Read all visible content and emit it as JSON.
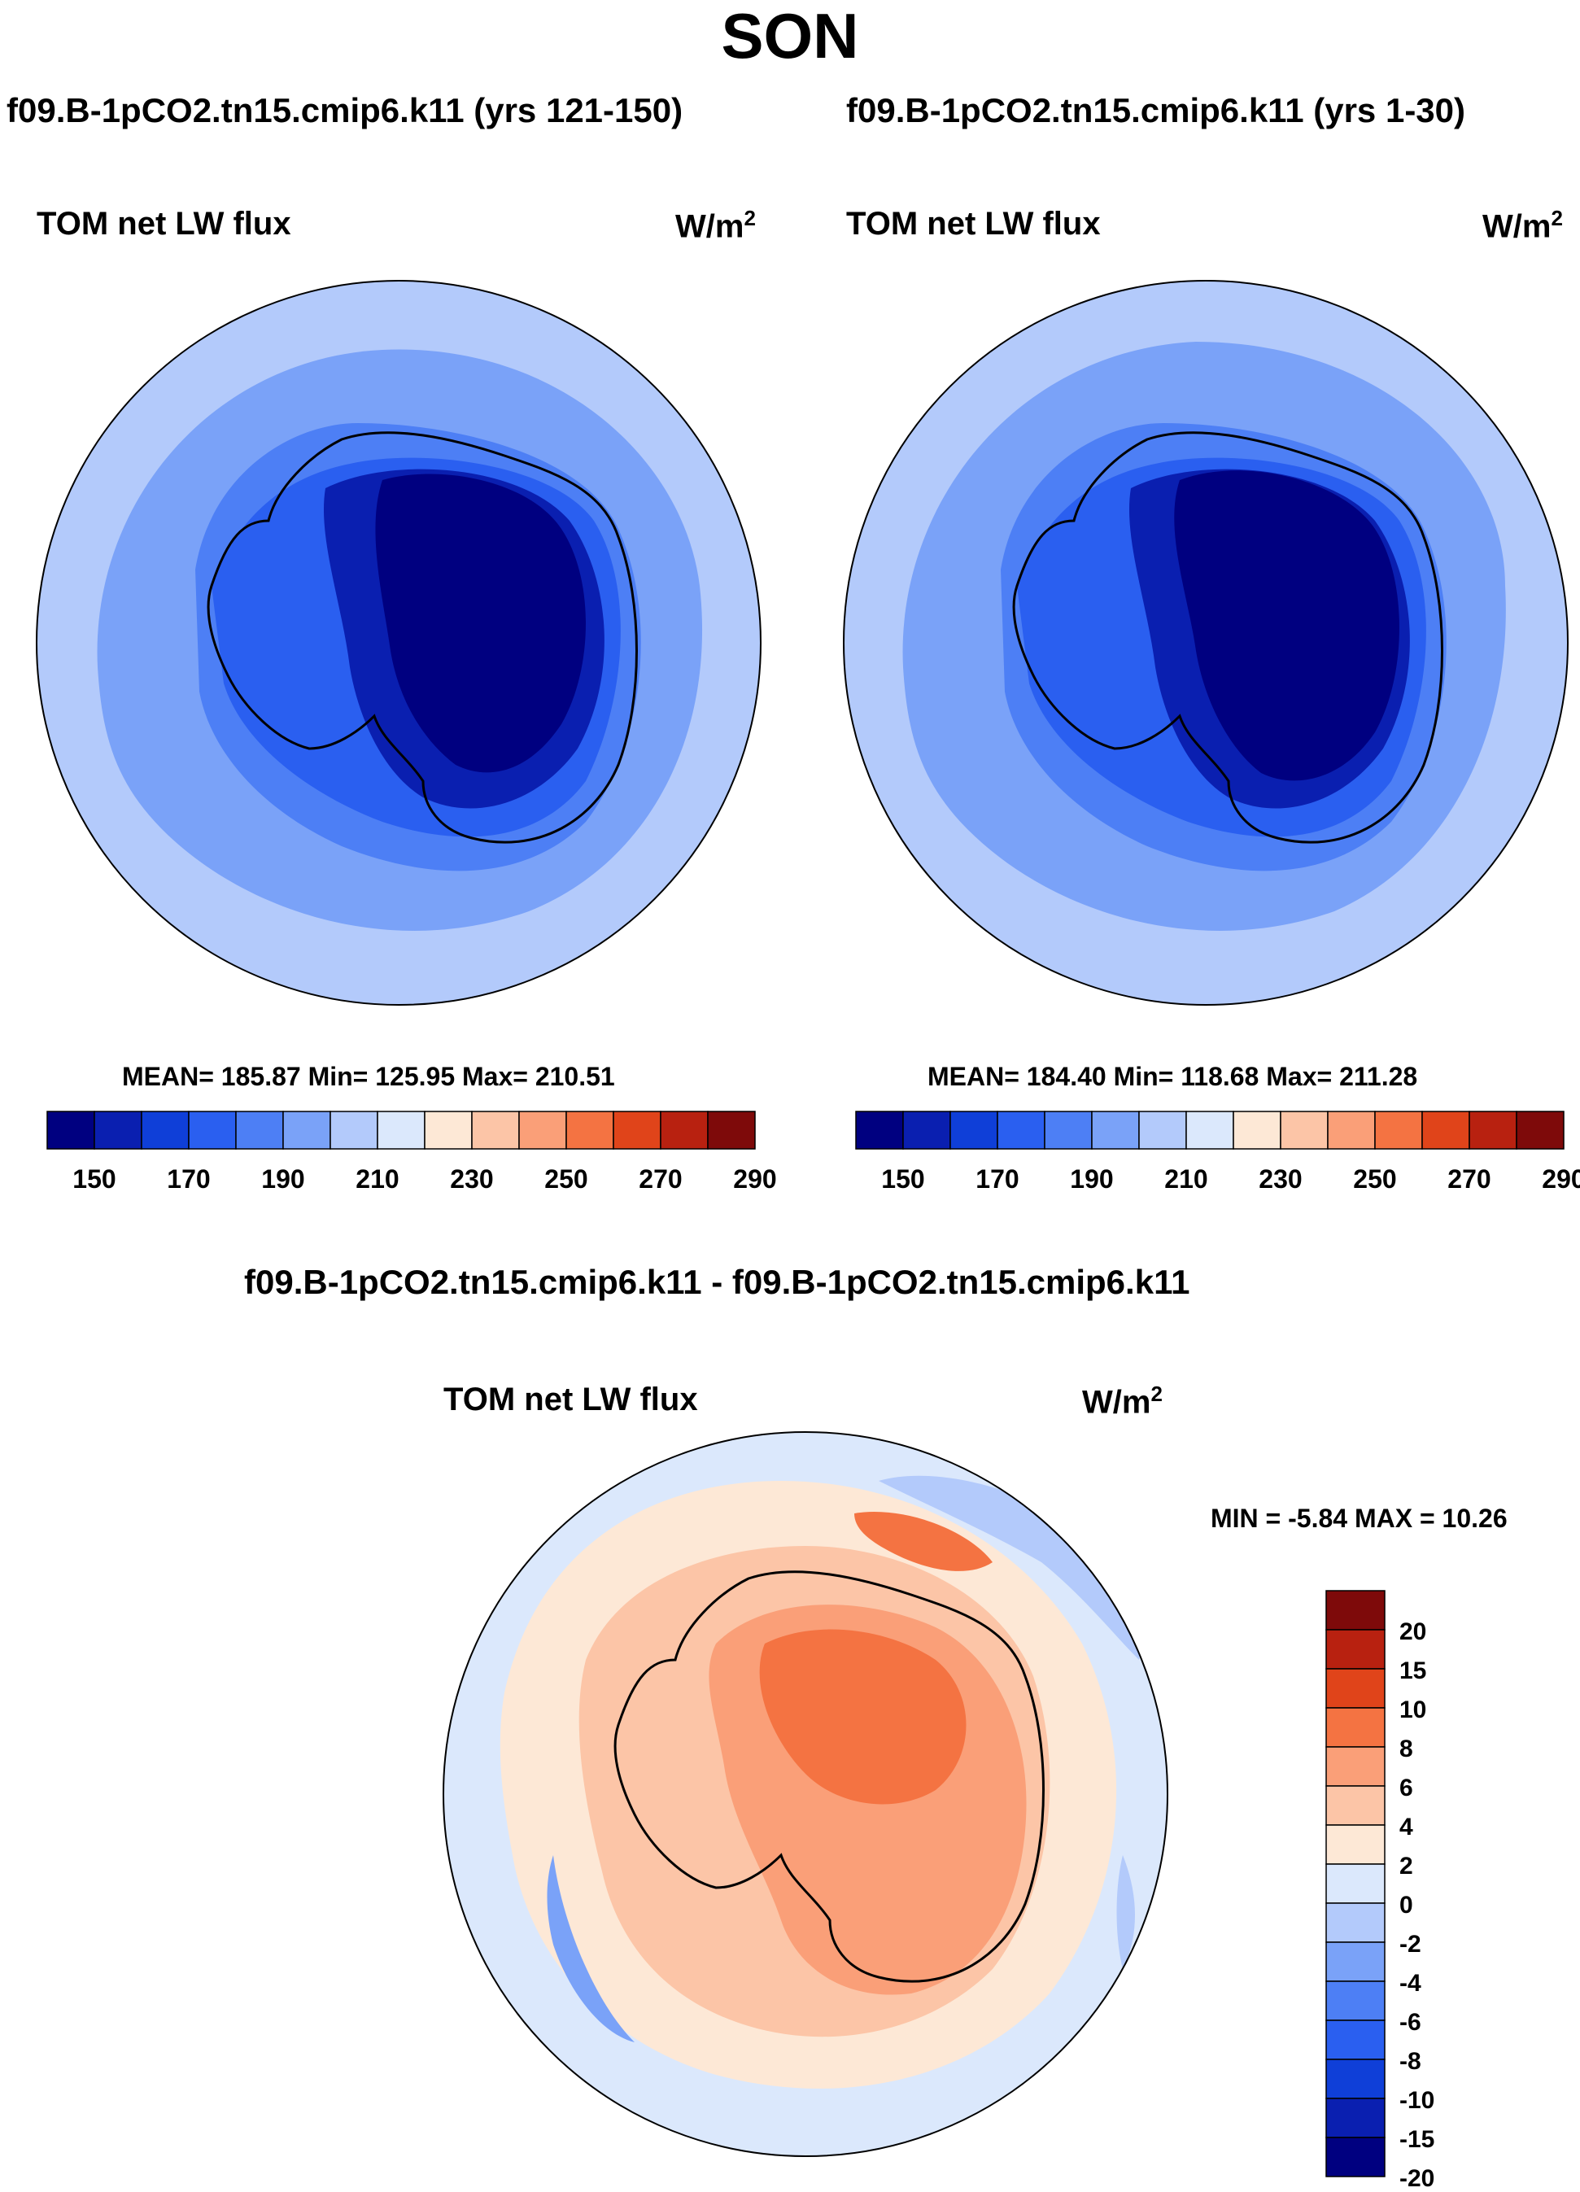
{
  "season": "SON",
  "variable": "TOM net LW flux",
  "units_base": "W/m",
  "units_exp": "2",
  "colors": {
    "abs_levels": [
      "#000080",
      "#0a1fb0",
      "#0f3fd8",
      "#2a5ff0",
      "#4d7ff5",
      "#7aa2f8",
      "#b3cafb",
      "#dbe8fc",
      "#fde8d6",
      "#fcc5a7",
      "#fa9f78",
      "#f47342",
      "#e0441a",
      "#b82110",
      "#7e0a0a"
    ],
    "diff_levels": [
      "#000080",
      "#0a1fb0",
      "#0f3fd8",
      "#2a5ff0",
      "#4d7ff5",
      "#7aa2f8",
      "#b3cafb",
      "#dbe8fc",
      "#fde8d6",
      "#fcc5a7",
      "#fa9f78",
      "#f47342",
      "#e0441a",
      "#b82110",
      "#7e0a0a"
    ]
  },
  "panels": {
    "left": {
      "case": "f09.B-1pCO2.tn15.cmip6.k11 (yrs 121-150)",
      "stats": "MEAN= 185.87  Min= 125.95  Max= 210.51"
    },
    "right": {
      "case": "f09.B-1pCO2.tn15.cmip6.k11 (yrs 1-30)",
      "stats": "MEAN= 184.40  Min= 118.68  Max= 211.28"
    },
    "diff": {
      "case": "f09.B-1pCO2.tn15.cmip6.k11 - f09.B-1pCO2.tn15.cmip6.k11",
      "stats": "MIN =  -5.84 MAX =  10.26"
    }
  },
  "abs_colorbar_ticks": [
    "150",
    "170",
    "190",
    "210",
    "230",
    "250",
    "270",
    "290"
  ],
  "diff_colorbar_ticks": [
    "20",
    "15",
    "10",
    "8",
    "6",
    "4",
    "2",
    "0",
    "-2",
    "-4",
    "-6",
    "-8",
    "-10",
    "-15",
    "-20"
  ],
  "map_data": {
    "projection": "south-polar stereographic",
    "region": "Antarctica",
    "abs_range_wm2": [
      140,
      300
    ],
    "diff_range_wm2": [
      -25,
      25
    ]
  }
}
